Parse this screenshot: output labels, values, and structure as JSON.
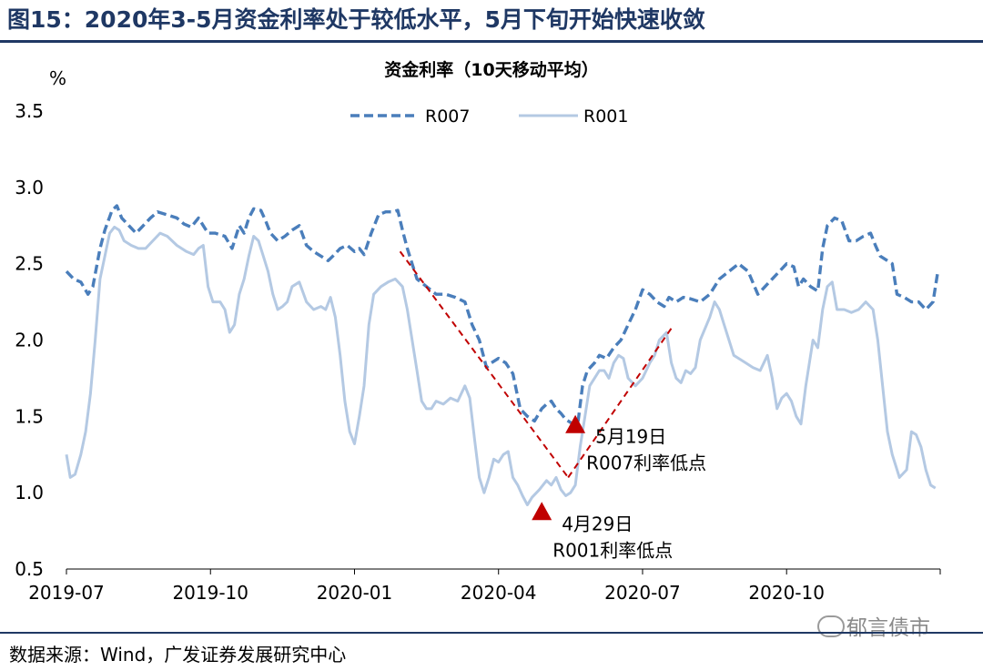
{
  "figure_title": "图15：2020年3-5月资金利率处于较低水平，5月下旬开始快速收敛",
  "source": "数据来源：Wind，广发证券发展研究中心",
  "watermark": "郁言债市",
  "watermark_icon": "wechat-icon",
  "colors": {
    "r007": "#4a7ebb",
    "r001": "#b4c9e3",
    "annotation": "#c00000",
    "title": "#1f3864"
  },
  "chart_data": {
    "type": "line",
    "title": "资金利率（10天移动平均）",
    "ylabel": "%",
    "ylim": [
      0.5,
      3.5
    ],
    "yticks": [
      "3.5",
      "3.0",
      "2.5",
      "2.0",
      "1.5",
      "1.0",
      "0.5"
    ],
    "xlim": [
      0,
      18.2
    ],
    "xticks": [
      {
        "t": 0,
        "label": "2019-07"
      },
      {
        "t": 3,
        "label": "2019-10"
      },
      {
        "t": 6,
        "label": "2020-01"
      },
      {
        "t": 9,
        "label": "2020-04"
      },
      {
        "t": 12,
        "label": "2020-07"
      },
      {
        "t": 15,
        "label": "2020-10"
      }
    ],
    "legend": {
      "position": "top-center",
      "entries": [
        "R007",
        "R001"
      ]
    },
    "series": [
      {
        "name": "R007",
        "style": "dashed",
        "points": [
          [
            0.0,
            2.45
          ],
          [
            0.15,
            2.4
          ],
          [
            0.3,
            2.38
          ],
          [
            0.45,
            2.3
          ],
          [
            0.55,
            2.35
          ],
          [
            0.7,
            2.6
          ],
          [
            0.8,
            2.72
          ],
          [
            0.95,
            2.85
          ],
          [
            1.05,
            2.88
          ],
          [
            1.15,
            2.8
          ],
          [
            1.3,
            2.75
          ],
          [
            1.45,
            2.7
          ],
          [
            1.6,
            2.75
          ],
          [
            1.75,
            2.8
          ],
          [
            1.9,
            2.84
          ],
          [
            2.1,
            2.82
          ],
          [
            2.3,
            2.8
          ],
          [
            2.45,
            2.76
          ],
          [
            2.6,
            2.74
          ],
          [
            2.75,
            2.8
          ],
          [
            2.85,
            2.75
          ],
          [
            2.95,
            2.7
          ],
          [
            3.1,
            2.7
          ],
          [
            3.3,
            2.68
          ],
          [
            3.45,
            2.6
          ],
          [
            3.6,
            2.75
          ],
          [
            3.7,
            2.7
          ],
          [
            3.8,
            2.8
          ],
          [
            3.9,
            2.86
          ],
          [
            4.05,
            2.85
          ],
          [
            4.15,
            2.78
          ],
          [
            4.25,
            2.7
          ],
          [
            4.4,
            2.65
          ],
          [
            4.55,
            2.68
          ],
          [
            4.7,
            2.72
          ],
          [
            4.85,
            2.75
          ],
          [
            5.0,
            2.62
          ],
          [
            5.15,
            2.58
          ],
          [
            5.3,
            2.55
          ],
          [
            5.45,
            2.52
          ],
          [
            5.55,
            2.55
          ],
          [
            5.7,
            2.6
          ],
          [
            5.85,
            2.62
          ],
          [
            6.0,
            2.58
          ],
          [
            6.1,
            2.6
          ],
          [
            6.2,
            2.56
          ],
          [
            6.35,
            2.7
          ],
          [
            6.5,
            2.82
          ],
          [
            6.65,
            2.84
          ],
          [
            6.8,
            2.84
          ],
          [
            6.9,
            2.85
          ],
          [
            7.0,
            2.72
          ],
          [
            7.1,
            2.6
          ],
          [
            7.2,
            2.5
          ],
          [
            7.3,
            2.4
          ],
          [
            7.5,
            2.35
          ],
          [
            7.7,
            2.3
          ],
          [
            7.9,
            2.3
          ],
          [
            8.1,
            2.28
          ],
          [
            8.3,
            2.25
          ],
          [
            8.45,
            2.1
          ],
          [
            8.6,
            2.0
          ],
          [
            8.75,
            1.82
          ],
          [
            8.85,
            1.85
          ],
          [
            9.0,
            1.88
          ],
          [
            9.15,
            1.85
          ],
          [
            9.3,
            1.78
          ],
          [
            9.45,
            1.55
          ],
          [
            9.6,
            1.5
          ],
          [
            9.75,
            1.47
          ],
          [
            9.9,
            1.55
          ],
          [
            10.0,
            1.58
          ],
          [
            10.1,
            1.6
          ],
          [
            10.2,
            1.55
          ],
          [
            10.3,
            1.52
          ],
          [
            10.4,
            1.48
          ],
          [
            10.55,
            1.45
          ],
          [
            10.65,
            1.45
          ],
          [
            10.75,
            1.7
          ],
          [
            10.85,
            1.8
          ],
          [
            11.0,
            1.85
          ],
          [
            11.1,
            1.9
          ],
          [
            11.25,
            1.88
          ],
          [
            11.4,
            1.95
          ],
          [
            11.55,
            2.0
          ],
          [
            11.7,
            2.1
          ],
          [
            11.85,
            2.2
          ],
          [
            12.0,
            2.33
          ],
          [
            12.15,
            2.3
          ],
          [
            12.3,
            2.25
          ],
          [
            12.45,
            2.22
          ],
          [
            12.55,
            2.28
          ],
          [
            12.7,
            2.25
          ],
          [
            12.85,
            2.28
          ],
          [
            13.0,
            2.27
          ],
          [
            13.2,
            2.25
          ],
          [
            13.4,
            2.3
          ],
          [
            13.6,
            2.4
          ],
          [
            13.8,
            2.45
          ],
          [
            14.0,
            2.5
          ],
          [
            14.2,
            2.45
          ],
          [
            14.4,
            2.3
          ],
          [
            14.55,
            2.35
          ],
          [
            14.7,
            2.4
          ],
          [
            14.85,
            2.45
          ],
          [
            15.0,
            2.5
          ],
          [
            15.15,
            2.48
          ],
          [
            15.25,
            2.35
          ],
          [
            15.35,
            2.4
          ],
          [
            15.5,
            2.35
          ],
          [
            15.65,
            2.32
          ],
          [
            15.75,
            2.6
          ],
          [
            15.85,
            2.75
          ],
          [
            16.0,
            2.8
          ],
          [
            16.15,
            2.78
          ],
          [
            16.3,
            2.65
          ],
          [
            16.45,
            2.65
          ],
          [
            16.6,
            2.68
          ],
          [
            16.75,
            2.7
          ],
          [
            16.85,
            2.62
          ],
          [
            16.95,
            2.55
          ],
          [
            17.1,
            2.52
          ],
          [
            17.2,
            2.5
          ],
          [
            17.3,
            2.3
          ],
          [
            17.45,
            2.28
          ],
          [
            17.6,
            2.25
          ],
          [
            17.75,
            2.25
          ],
          [
            17.9,
            2.2
          ],
          [
            18.05,
            2.25
          ],
          [
            18.15,
            2.45
          ]
        ]
      },
      {
        "name": "R001",
        "style": "solid",
        "points": [
          [
            0.0,
            1.25
          ],
          [
            0.08,
            1.1
          ],
          [
            0.18,
            1.12
          ],
          [
            0.3,
            1.25
          ],
          [
            0.4,
            1.4
          ],
          [
            0.5,
            1.65
          ],
          [
            0.6,
            2.0
          ],
          [
            0.7,
            2.4
          ],
          [
            0.8,
            2.55
          ],
          [
            0.9,
            2.7
          ],
          [
            1.0,
            2.74
          ],
          [
            1.1,
            2.72
          ],
          [
            1.2,
            2.65
          ],
          [
            1.35,
            2.62
          ],
          [
            1.5,
            2.6
          ],
          [
            1.65,
            2.6
          ],
          [
            1.8,
            2.65
          ],
          [
            1.95,
            2.7
          ],
          [
            2.1,
            2.68
          ],
          [
            2.3,
            2.62
          ],
          [
            2.5,
            2.58
          ],
          [
            2.65,
            2.56
          ],
          [
            2.75,
            2.6
          ],
          [
            2.85,
            2.62
          ],
          [
            2.95,
            2.35
          ],
          [
            3.05,
            2.25
          ],
          [
            3.2,
            2.25
          ],
          [
            3.3,
            2.2
          ],
          [
            3.4,
            2.05
          ],
          [
            3.5,
            2.1
          ],
          [
            3.6,
            2.3
          ],
          [
            3.7,
            2.4
          ],
          [
            3.8,
            2.55
          ],
          [
            3.9,
            2.68
          ],
          [
            4.0,
            2.65
          ],
          [
            4.1,
            2.55
          ],
          [
            4.2,
            2.45
          ],
          [
            4.3,
            2.3
          ],
          [
            4.4,
            2.2
          ],
          [
            4.5,
            2.22
          ],
          [
            4.6,
            2.25
          ],
          [
            4.7,
            2.35
          ],
          [
            4.85,
            2.38
          ],
          [
            5.0,
            2.25
          ],
          [
            5.15,
            2.2
          ],
          [
            5.3,
            2.22
          ],
          [
            5.4,
            2.2
          ],
          [
            5.5,
            2.28
          ],
          [
            5.6,
            2.15
          ],
          [
            5.7,
            1.9
          ],
          [
            5.8,
            1.6
          ],
          [
            5.9,
            1.4
          ],
          [
            6.0,
            1.32
          ],
          [
            6.1,
            1.5
          ],
          [
            6.2,
            1.7
          ],
          [
            6.3,
            2.1
          ],
          [
            6.4,
            2.3
          ],
          [
            6.55,
            2.35
          ],
          [
            6.7,
            2.38
          ],
          [
            6.85,
            2.4
          ],
          [
            7.0,
            2.35
          ],
          [
            7.1,
            2.2
          ],
          [
            7.2,
            2.0
          ],
          [
            7.3,
            1.8
          ],
          [
            7.4,
            1.6
          ],
          [
            7.5,
            1.55
          ],
          [
            7.6,
            1.55
          ],
          [
            7.7,
            1.6
          ],
          [
            7.85,
            1.58
          ],
          [
            8.0,
            1.62
          ],
          [
            8.15,
            1.6
          ],
          [
            8.3,
            1.7
          ],
          [
            8.4,
            1.62
          ],
          [
            8.5,
            1.35
          ],
          [
            8.6,
            1.1
          ],
          [
            8.7,
            1.0
          ],
          [
            8.8,
            1.1
          ],
          [
            8.9,
            1.22
          ],
          [
            9.0,
            1.2
          ],
          [
            9.1,
            1.25
          ],
          [
            9.2,
            1.27
          ],
          [
            9.3,
            1.1
          ],
          [
            9.4,
            1.05
          ],
          [
            9.5,
            0.98
          ],
          [
            9.6,
            0.92
          ],
          [
            9.7,
            0.97
          ],
          [
            9.85,
            1.02
          ],
          [
            10.0,
            1.08
          ],
          [
            10.1,
            1.05
          ],
          [
            10.2,
            1.1
          ],
          [
            10.3,
            1.02
          ],
          [
            10.4,
            0.98
          ],
          [
            10.5,
            1.0
          ],
          [
            10.6,
            1.05
          ],
          [
            10.7,
            1.3
          ],
          [
            10.8,
            1.5
          ],
          [
            10.9,
            1.7
          ],
          [
            11.0,
            1.75
          ],
          [
            11.1,
            1.8
          ],
          [
            11.2,
            1.8
          ],
          [
            11.3,
            1.75
          ],
          [
            11.4,
            1.85
          ],
          [
            11.5,
            1.9
          ],
          [
            11.6,
            1.88
          ],
          [
            11.7,
            1.75
          ],
          [
            11.85,
            1.7
          ],
          [
            12.0,
            1.75
          ],
          [
            12.15,
            1.85
          ],
          [
            12.25,
            1.9
          ],
          [
            12.35,
            2.0
          ],
          [
            12.5,
            2.05
          ],
          [
            12.6,
            1.85
          ],
          [
            12.7,
            1.75
          ],
          [
            12.8,
            1.72
          ],
          [
            12.9,
            1.8
          ],
          [
            13.0,
            1.78
          ],
          [
            13.1,
            1.82
          ],
          [
            13.2,
            2.0
          ],
          [
            13.4,
            2.15
          ],
          [
            13.5,
            2.25
          ],
          [
            13.6,
            2.2
          ],
          [
            13.7,
            2.1
          ],
          [
            13.8,
            2.0
          ],
          [
            13.9,
            1.9
          ],
          [
            14.0,
            1.88
          ],
          [
            14.15,
            1.85
          ],
          [
            14.3,
            1.82
          ],
          [
            14.45,
            1.8
          ],
          [
            14.6,
            1.9
          ],
          [
            14.7,
            1.75
          ],
          [
            14.8,
            1.55
          ],
          [
            14.9,
            1.62
          ],
          [
            15.0,
            1.65
          ],
          [
            15.1,
            1.6
          ],
          [
            15.2,
            1.5
          ],
          [
            15.3,
            1.45
          ],
          [
            15.4,
            1.7
          ],
          [
            15.55,
            2.0
          ],
          [
            15.65,
            1.95
          ],
          [
            15.75,
            2.2
          ],
          [
            15.85,
            2.35
          ],
          [
            15.95,
            2.38
          ],
          [
            16.05,
            2.2
          ],
          [
            16.2,
            2.2
          ],
          [
            16.35,
            2.18
          ],
          [
            16.5,
            2.2
          ],
          [
            16.65,
            2.25
          ],
          [
            16.8,
            2.2
          ],
          [
            16.9,
            2.0
          ],
          [
            17.0,
            1.7
          ],
          [
            17.1,
            1.4
          ],
          [
            17.2,
            1.25
          ],
          [
            17.35,
            1.1
          ],
          [
            17.5,
            1.15
          ],
          [
            17.6,
            1.4
          ],
          [
            17.7,
            1.38
          ],
          [
            17.8,
            1.3
          ],
          [
            17.9,
            1.15
          ],
          [
            18.0,
            1.05
          ],
          [
            18.1,
            1.03
          ]
        ]
      }
    ],
    "annotations": {
      "trend_lines": [
        [
          [
            6.95,
            2.58
          ],
          [
            10.45,
            1.1
          ]
        ],
        [
          [
            10.45,
            1.1
          ],
          [
            12.65,
            2.1
          ]
        ]
      ],
      "markers": [
        {
          "t": 9.9,
          "v": 0.88,
          "label1": "4月29日",
          "label2": "R001利率低点"
        },
        {
          "t": 10.6,
          "v": 1.45,
          "label1": "5月19日",
          "label2": "R007利率低点"
        }
      ]
    }
  }
}
